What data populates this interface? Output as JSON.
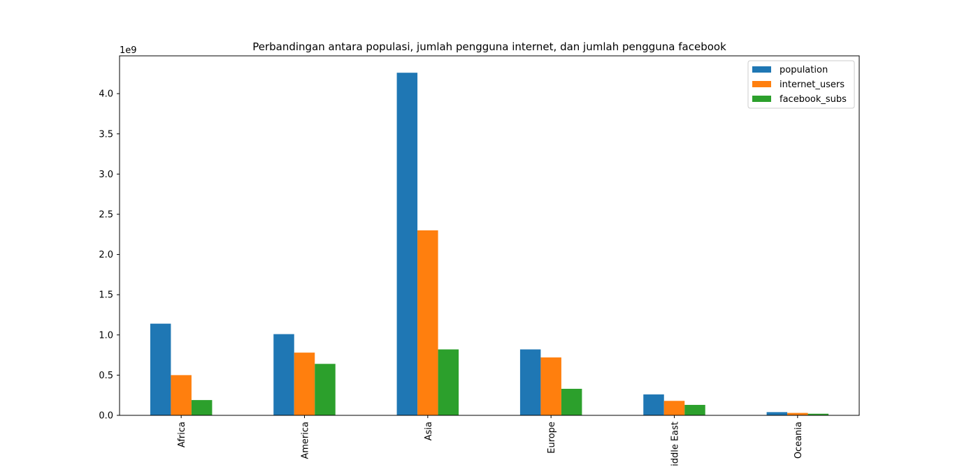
{
  "chart_data": {
    "type": "bar",
    "title": "Perbandingan antara populasi, jumlah pengguna internet, dan jumlah pengguna facebook",
    "xlabel": "",
    "ylabel": "",
    "y_offset_label": "1e9",
    "categories": [
      "Africa",
      "America",
      "Asia",
      "Europe",
      "Middle East",
      "Oceania"
    ],
    "series": [
      {
        "name": "population",
        "color": "#1f77b4",
        "values": [
          1.14,
          1.01,
          4.26,
          0.82,
          0.26,
          0.04
        ]
      },
      {
        "name": "internet_users",
        "color": "#ff7f0e",
        "values": [
          0.5,
          0.78,
          2.3,
          0.72,
          0.18,
          0.03
        ]
      },
      {
        "name": "facebook_subs",
        "color": "#2ca02c",
        "values": [
          0.19,
          0.64,
          0.82,
          0.33,
          0.13,
          0.02
        ]
      }
    ],
    "ylim": [
      0,
      4.47
    ],
    "yticks": [
      "0.0",
      "0.5",
      "1.0",
      "1.5",
      "2.0",
      "2.5",
      "3.0",
      "3.5",
      "4.0"
    ],
    "grid": false,
    "legend": "top-right"
  }
}
